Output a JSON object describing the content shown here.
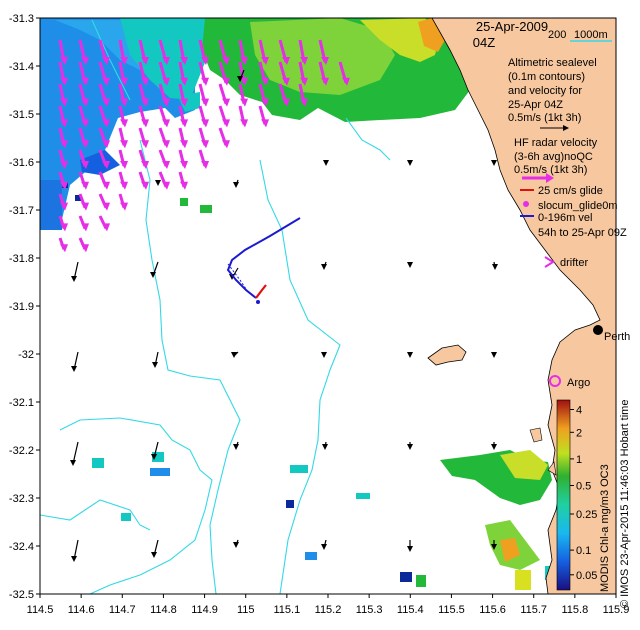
{
  "header": {
    "date": "25-Apr-2009",
    "time": "04Z"
  },
  "scale": {
    "labels": [
      "200",
      "1000m"
    ]
  },
  "legend": {
    "altimetry": [
      "Altimetric sealevel",
      "(0.1m contours)",
      "and velocity for",
      "25-Apr 04Z",
      "0.5m/s (1kt 3h)"
    ],
    "hf_radar": [
      "HF radar velocity",
      "(3-6h avg)noQC",
      "0.5m/s (1kt 3h)"
    ],
    "glider_speed": "25 cm/s glide",
    "glider_name": "slocum_glide\u00100m",
    "glider_depth": "0-196m vel",
    "glider_time": "54h to 25-Apr 09Z",
    "drifter": "drifter",
    "argo": "Argo"
  },
  "places": {
    "perth": "Perth"
  },
  "colorbar": {
    "title": "MODIS Chl-a mg/m3 OC3",
    "ticks": [
      "4",
      "2",
      "1",
      "0.5",
      "0.25",
      "0.1",
      "0.05"
    ]
  },
  "credit": "© IMOS 23-Apr-2015 11:46:03 Hobart time",
  "axes": {
    "x_ticks": [
      "114.5",
      "114.6",
      "114.7",
      "114.8",
      "114.9",
      "115",
      "115.1",
      "115.2",
      "115.3",
      "115.4",
      "115.5",
      "115.6",
      "115.7",
      "115.8",
      "115.9"
    ],
    "y_ticks": [
      "-31.3",
      "-31.4",
      "-31.5",
      "-31.6",
      "-31.7",
      "-31.8",
      "-31.9",
      "-32",
      "-32.1",
      "-32.2",
      "-32.3",
      "-32.4",
      "-32.5"
    ]
  },
  "colors": {
    "land": "#f7c89f",
    "isobath": "#33d9e6",
    "hf_arrow": "#e62ee6",
    "glider_track": "#1a1ad0",
    "glider_recent": "#e01010",
    "blue_chl": "#1e8ee8",
    "teal_chl": "#12c8c0",
    "green_chl": "#22b83a",
    "yellow_chl": "#d8e020"
  }
}
